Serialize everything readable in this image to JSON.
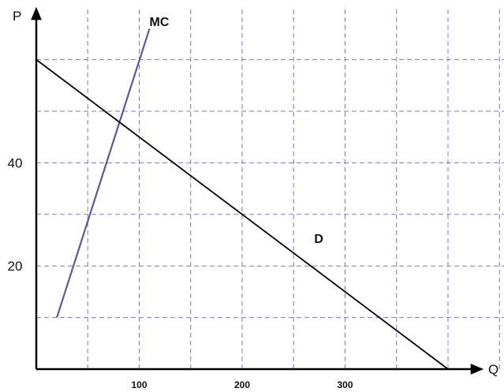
{
  "chart_data": {
    "type": "line",
    "title": "",
    "xlabel": "Q",
    "ylabel": "P",
    "xlim": [
      0,
      400
    ],
    "ylim": [
      0,
      60
    ],
    "grid": true,
    "x_gridlines": [
      50,
      100,
      150,
      200,
      250,
      300,
      350,
      400,
      450
    ],
    "y_gridlines": [
      10,
      20,
      30,
      40,
      50,
      60
    ],
    "x_ticks": [
      {
        "value": 100,
        "label": "100"
      },
      {
        "value": 200,
        "label": "200"
      },
      {
        "value": 300,
        "label": "300"
      }
    ],
    "y_ticks": [
      {
        "value": 20,
        "label": "20"
      },
      {
        "value": 40,
        "label": "40"
      }
    ],
    "series": [
      {
        "name": "MC",
        "color": "#5a5a9e",
        "points": [
          [
            20,
            10
          ],
          [
            110,
            66
          ]
        ],
        "label_at": [
          110,
          66.5
        ]
      },
      {
        "name": "D",
        "color": "#000000",
        "points": [
          [
            0,
            60
          ],
          [
            400,
            0
          ]
        ],
        "label_at": [
          270,
          24.5
        ]
      }
    ]
  }
}
